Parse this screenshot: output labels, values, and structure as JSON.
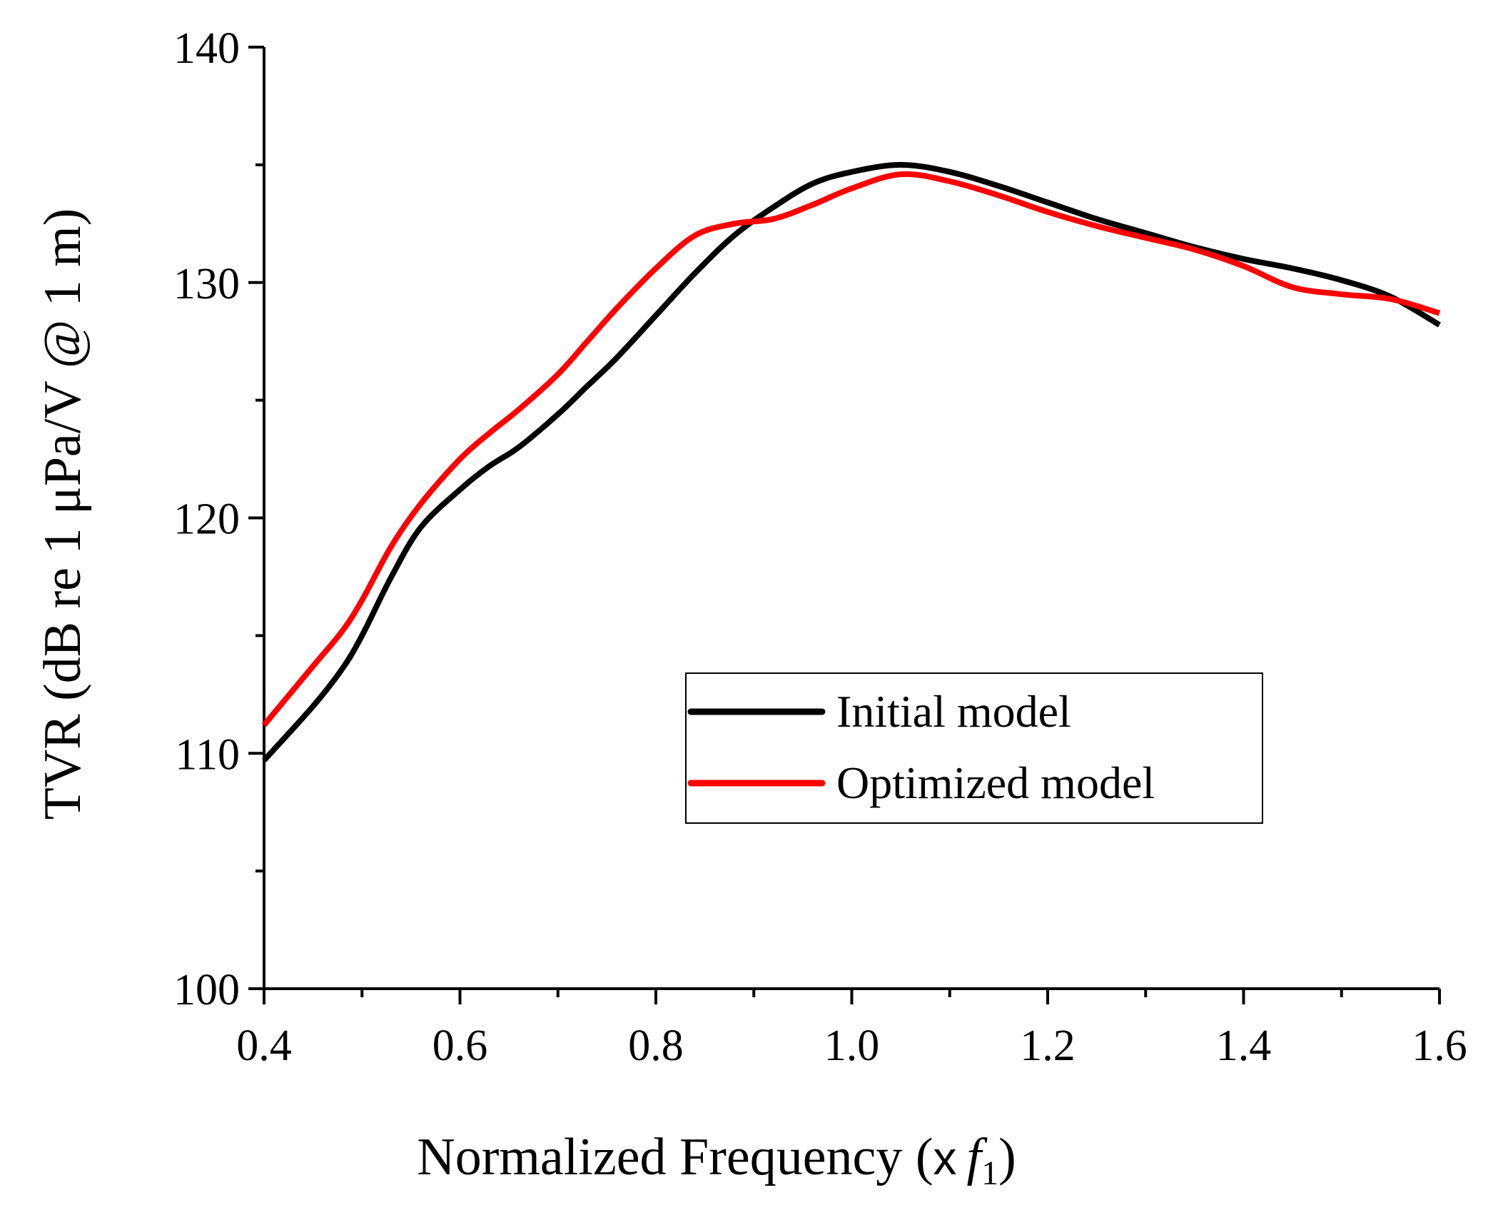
{
  "chart_data": {
    "type": "line",
    "title": "",
    "xlabel": "Normalized Frequency (x f1)",
    "xlabel_parts": {
      "main": "Normalized Frequency (",
      "times": "x",
      "f": "f",
      "sub": "1",
      "close": ")"
    },
    "ylabel": "TVR (dB re 1 μPa/V @ 1 m)",
    "xlim": [
      0.4,
      1.6
    ],
    "ylim": [
      100,
      140
    ],
    "x_major_ticks": [
      0.4,
      0.6,
      0.8,
      1.0,
      1.2,
      1.4,
      1.6
    ],
    "x_tick_labels": [
      "0.4",
      "0.6",
      "0.8",
      "1.0",
      "1.2",
      "1.4",
      "1.6"
    ],
    "x_minor_ticks": [
      0.5,
      0.7,
      0.9,
      1.1,
      1.3,
      1.5
    ],
    "y_major_ticks": [
      100,
      110,
      120,
      130,
      140
    ],
    "y_tick_labels": [
      "100",
      "110",
      "120",
      "130",
      "140"
    ],
    "y_minor_ticks": [
      105,
      115,
      125,
      135
    ],
    "grid": false,
    "legend_position": "center-right",
    "series": [
      {
        "name": "Initial model",
        "color": "#000000",
        "x": [
          0.4,
          0.45,
          0.48,
          0.5,
          0.53,
          0.56,
          0.6,
          0.63,
          0.66,
          0.7,
          0.73,
          0.76,
          0.8,
          0.84,
          0.88,
          0.92,
          0.96,
          1.0,
          1.05,
          1.1,
          1.15,
          1.2,
          1.25,
          1.3,
          1.35,
          1.4,
          1.45,
          1.5,
          1.55,
          1.6
        ],
        "y": [
          109.7,
          112.0,
          113.6,
          115.0,
          117.5,
          119.6,
          121.2,
          122.2,
          123.0,
          124.4,
          125.6,
          126.8,
          128.6,
          130.4,
          132.0,
          133.2,
          134.2,
          134.7,
          135.0,
          134.7,
          134.1,
          133.4,
          132.7,
          132.1,
          131.5,
          131.0,
          130.6,
          130.1,
          129.4,
          128.2
        ]
      },
      {
        "name": "Optimized model",
        "color": "#ff0000",
        "x": [
          0.4,
          0.45,
          0.48,
          0.5,
          0.53,
          0.56,
          0.6,
          0.63,
          0.66,
          0.7,
          0.73,
          0.76,
          0.8,
          0.84,
          0.88,
          0.92,
          0.96,
          1.0,
          1.05,
          1.1,
          1.15,
          1.2,
          1.25,
          1.3,
          1.35,
          1.4,
          1.45,
          1.5,
          1.55,
          1.6
        ],
        "y": [
          111.2,
          113.7,
          115.2,
          116.5,
          118.8,
          120.6,
          122.5,
          123.6,
          124.6,
          126.1,
          127.5,
          128.9,
          130.6,
          132.0,
          132.5,
          132.7,
          133.3,
          134.0,
          134.6,
          134.3,
          133.7,
          133.0,
          132.4,
          131.9,
          131.4,
          130.7,
          129.8,
          129.5,
          129.3,
          128.7
        ]
      }
    ]
  }
}
